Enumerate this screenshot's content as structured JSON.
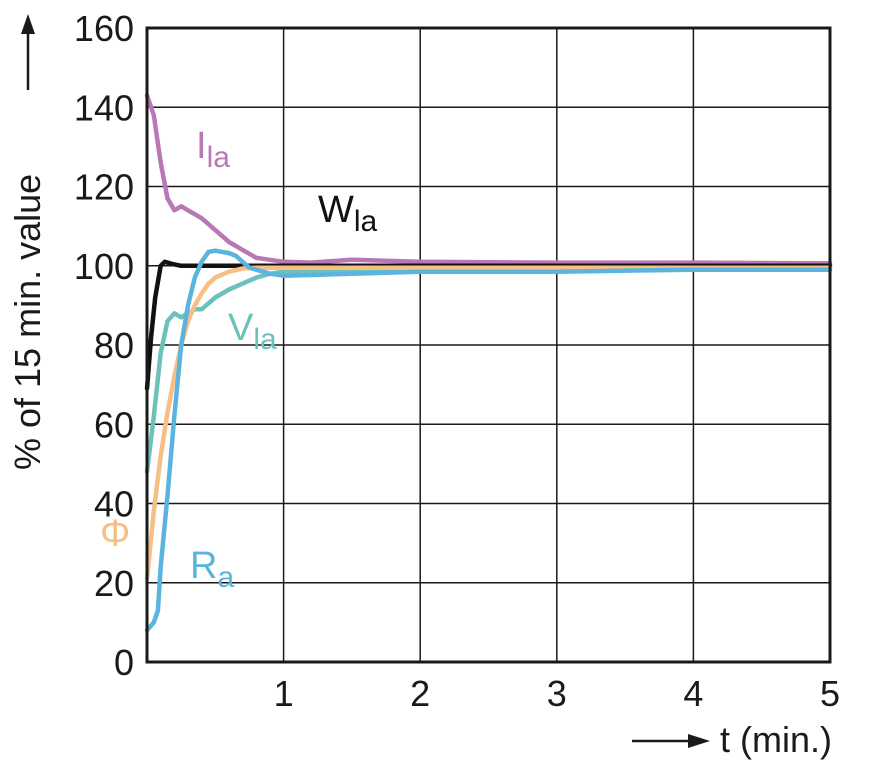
{
  "chart_data": {
    "type": "line",
    "xlabel": "t (min.)",
    "ylabel": "% of 15 min. value",
    "xlim": [
      0,
      5
    ],
    "ylim": [
      0,
      160
    ],
    "x_ticks": [
      "1",
      "2",
      "3",
      "4",
      "5"
    ],
    "y_ticks": [
      "0",
      "20",
      "40",
      "60",
      "80",
      "100",
      "120",
      "140",
      "160"
    ],
    "grid": true,
    "series": [
      {
        "name": "I",
        "subscript": "la",
        "color": "#b978b5",
        "x": [
          0,
          0.05,
          0.1,
          0.15,
          0.2,
          0.25,
          0.3,
          0.4,
          0.5,
          0.6,
          0.7,
          0.8,
          0.9,
          1.0,
          1.2,
          1.5,
          2.0,
          3.0,
          4.0,
          5.0
        ],
        "y": [
          143,
          138,
          126,
          117,
          114,
          115,
          114,
          112,
          109,
          106,
          104,
          102,
          101.5,
          101,
          100.8,
          101.5,
          101,
          100.8,
          100.8,
          100.6
        ]
      },
      {
        "name": "W",
        "subscript": "la",
        "color": "#111111",
        "x": [
          0,
          0.03,
          0.06,
          0.1,
          0.13,
          0.18,
          0.25,
          0.5,
          1.0,
          2.0,
          5.0
        ],
        "y": [
          69,
          82,
          92,
          100,
          101,
          100.5,
          100,
          100,
          100,
          100,
          100
        ]
      },
      {
        "name": "V",
        "subscript": "la",
        "color": "#6cc2bb",
        "x": [
          0,
          0.05,
          0.1,
          0.15,
          0.2,
          0.25,
          0.3,
          0.35,
          0.4,
          0.5,
          0.6,
          0.7,
          0.8,
          0.9,
          1.0,
          1.5,
          2.0,
          3.0,
          4.0,
          5.0
        ],
        "y": [
          48,
          62,
          78,
          86,
          88,
          87,
          88,
          89,
          89,
          92,
          94,
          95.5,
          97,
          98,
          98.5,
          99,
          99,
          99,
          99.2,
          99.4
        ]
      },
      {
        "name": "Φ",
        "subscript": "",
        "color": "#f7bf84",
        "x": [
          0,
          0.05,
          0.1,
          0.15,
          0.2,
          0.25,
          0.3,
          0.35,
          0.4,
          0.45,
          0.5,
          0.6,
          0.7,
          0.8,
          0.9,
          1.0,
          1.5,
          2.0,
          3.0,
          5.0
        ],
        "y": [
          21,
          38,
          52,
          63,
          72,
          80,
          86,
          90,
          93,
          95.5,
          97,
          98.5,
          99.3,
          99.5,
          99.5,
          99.5,
          99.5,
          99.5,
          99.5,
          99.5
        ]
      },
      {
        "name": "R",
        "subscript": "a",
        "color": "#5ab4de",
        "x": [
          0,
          0.05,
          0.08,
          0.1,
          0.15,
          0.2,
          0.25,
          0.3,
          0.35,
          0.4,
          0.45,
          0.5,
          0.55,
          0.6,
          0.65,
          0.7,
          0.75,
          0.8,
          0.9,
          1.0,
          1.5,
          2.0,
          3.0,
          4.0,
          5.0
        ],
        "y": [
          8,
          10,
          13,
          24,
          42,
          62,
          80,
          90,
          97,
          101,
          103.5,
          103.8,
          103.5,
          103.2,
          102.5,
          101,
          99.5,
          99,
          98,
          97.5,
          98,
          98.5,
          98.5,
          99,
          99
        ]
      }
    ]
  }
}
